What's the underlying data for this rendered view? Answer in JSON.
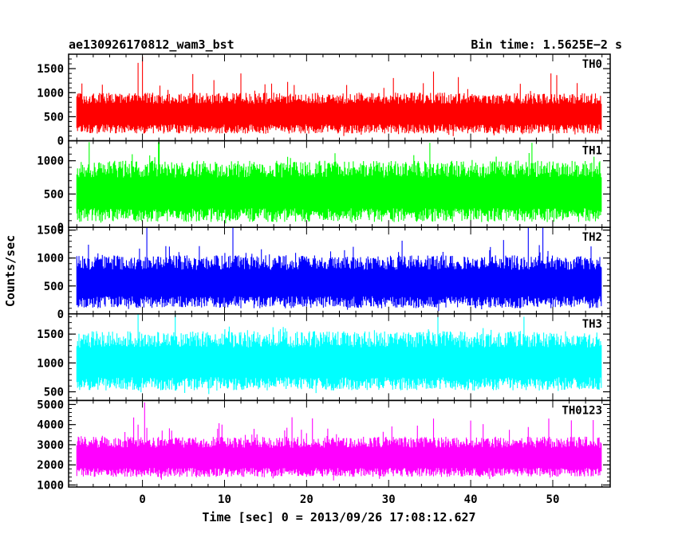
{
  "header": {
    "left_title": "ae130926170812_wam3_bst",
    "right_title": "Bin time: 1.5625E−2 s"
  },
  "chart_data": {
    "type": "line",
    "xlabel": "Time [sec] 0 = 2013/09/26 17:08:12.627",
    "ylabel": "Counts/sec",
    "xlim": [
      -9,
      57
    ],
    "x_ticks": [
      0,
      10,
      20,
      30,
      40,
      50
    ],
    "x_tick_labels": [
      "0",
      "10",
      "20",
      "30",
      "40",
      "50"
    ],
    "data_x_range": [
      -8,
      56
    ],
    "bin_time_s": 0.015625,
    "panels": [
      {
        "name": "TH0",
        "color": "#ff0000",
        "ylim": [
          0,
          1800
        ],
        "y_ticks": [
          0,
          500,
          1000,
          1500
        ],
        "y_tick_labels": [
          "0",
          "500",
          "1000",
          "1500"
        ],
        "baseline_low": 150,
        "typical_high": 1000,
        "peak_max": 1750,
        "peaks": [
          [
            0.0,
            1750
          ],
          [
            -0.5,
            1620
          ],
          [
            35.5,
            1440
          ],
          [
            12.0,
            1400
          ],
          [
            49.8,
            1400
          ]
        ]
      },
      {
        "name": "TH1",
        "color": "#00ff00",
        "ylim": [
          0,
          1300
        ],
        "y_ticks": [
          0,
          500,
          1000
        ],
        "y_tick_labels": [
          "0",
          "500",
          "1000"
        ],
        "baseline_low": 80,
        "typical_high": 1000,
        "peak_max": 1290,
        "peaks": [
          [
            -6.5,
            1280
          ],
          [
            2.0,
            1280
          ],
          [
            35.0,
            1270
          ],
          [
            47.5,
            1270
          ]
        ]
      },
      {
        "name": "TH2",
        "color": "#0000ff",
        "ylim": [
          0,
          1550
        ],
        "y_ticks": [
          0,
          500,
          1000,
          1500
        ],
        "y_tick_labels": [
          "0",
          "500",
          "1000",
          "1500"
        ],
        "baseline_low": 100,
        "typical_high": 1050,
        "peak_max": 1550,
        "peaks": [
          [
            0.5,
            1550
          ],
          [
            11.0,
            1550
          ],
          [
            47.0,
            1550
          ],
          [
            48.8,
            1550
          ]
        ]
      },
      {
        "name": "TH3",
        "color": "#00ffff",
        "ylim": [
          350,
          1850
        ],
        "y_ticks": [
          500,
          1000,
          1500
        ],
        "y_tick_labels": [
          "500",
          "1000",
          "1500"
        ],
        "baseline_low": 520,
        "typical_high": 1550,
        "peak_max": 1850,
        "peaks": [
          [
            -0.5,
            1850
          ],
          [
            4.0,
            1850
          ],
          [
            36.0,
            1800
          ],
          [
            46.5,
            1800
          ]
        ]
      },
      {
        "name": "TH0123",
        "color": "#ff00ff",
        "ylim": [
          900,
          5200
        ],
        "y_ticks": [
          1000,
          2000,
          3000,
          4000,
          5000
        ],
        "y_tick_labels": [
          "1000",
          "2000",
          "3000",
          "4000",
          "5000"
        ],
        "baseline_low": 1400,
        "typical_high": 3400,
        "peak_max": 5100,
        "peaks": [
          [
            0.3,
            5100
          ],
          [
            35.5,
            4300
          ],
          [
            49.5,
            4300
          ],
          [
            -0.5,
            4000
          ]
        ]
      }
    ]
  }
}
